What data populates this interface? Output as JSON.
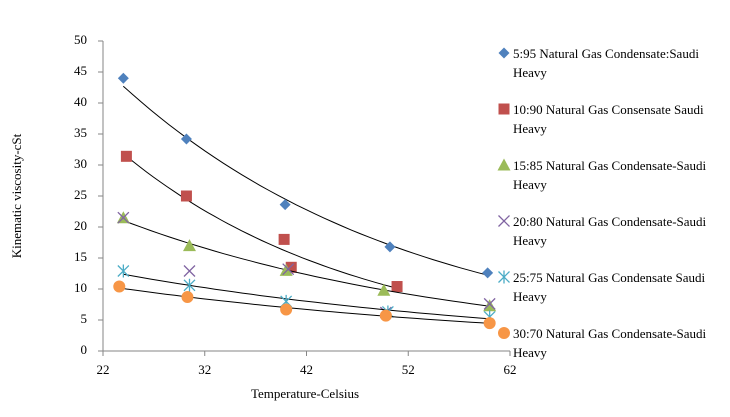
{
  "chart_data": {
    "type": "scatter",
    "xlabel": "Temperature-Celsius",
    "ylabel": "Kinematic viscosity-cSt",
    "xlim": [
      22,
      62
    ],
    "xticks": [
      22,
      32,
      42,
      52,
      62
    ],
    "ylim": [
      0,
      50
    ],
    "yticks": [
      0,
      5,
      10,
      15,
      20,
      25,
      30,
      35,
      40,
      45,
      50
    ],
    "legend": "right",
    "series": [
      {
        "name": "5:95 Natural Gas Condensate:Saudi Heavy",
        "color": "#4F81BD",
        "marker": "diamond",
        "trendline": true,
        "x": [
          24,
          30.2,
          39.9,
          50.2,
          59.8
        ],
        "values": [
          44,
          34.2,
          23.6,
          16.8,
          12.6
        ]
      },
      {
        "name": "10:90 Natural Gas Consensate Saudi Heavy",
        "color": "#C0504D",
        "marker": "square",
        "trendline": true,
        "x": [
          24.3,
          30.2,
          39.8,
          40.5,
          50.9
        ],
        "values": [
          31.4,
          25,
          18,
          13.5,
          10.4
        ]
      },
      {
        "name": "15:85 Natural Gas Condensate-Saudi Heavy",
        "color": "#9BBB59",
        "marker": "triangle",
        "trendline": true,
        "x": [
          24,
          30.5,
          40,
          49.6,
          60
        ],
        "values": [
          21.5,
          17,
          13,
          9.8,
          7.3
        ]
      },
      {
        "name": "20:80 Natural Gas Condensate-Saudi Heavy",
        "color": "#8064A2",
        "marker": "x",
        "trendline": false,
        "x": [
          24,
          30.5,
          40.2,
          49.8,
          60
        ],
        "values": [
          21.5,
          12.9,
          13.2,
          6.2,
          7.6
        ]
      },
      {
        "name": "25:75 Natural Gas Condensate Saudi Heavy",
        "color": "#4BACC6",
        "marker": "asterisk",
        "trendline": true,
        "x": [
          24,
          30.5,
          40,
          50,
          60
        ],
        "values": [
          12.9,
          10.6,
          8,
          6.3,
          5.5
        ]
      },
      {
        "name": "30:70 Natural Gas Condensate-Saudi Heavy",
        "color": "#F79646",
        "marker": "circle",
        "trendline": true,
        "x": [
          23.6,
          30.3,
          40,
          49.8,
          60
        ],
        "values": [
          10.4,
          8.7,
          6.7,
          5.7,
          4.5
        ]
      }
    ]
  }
}
